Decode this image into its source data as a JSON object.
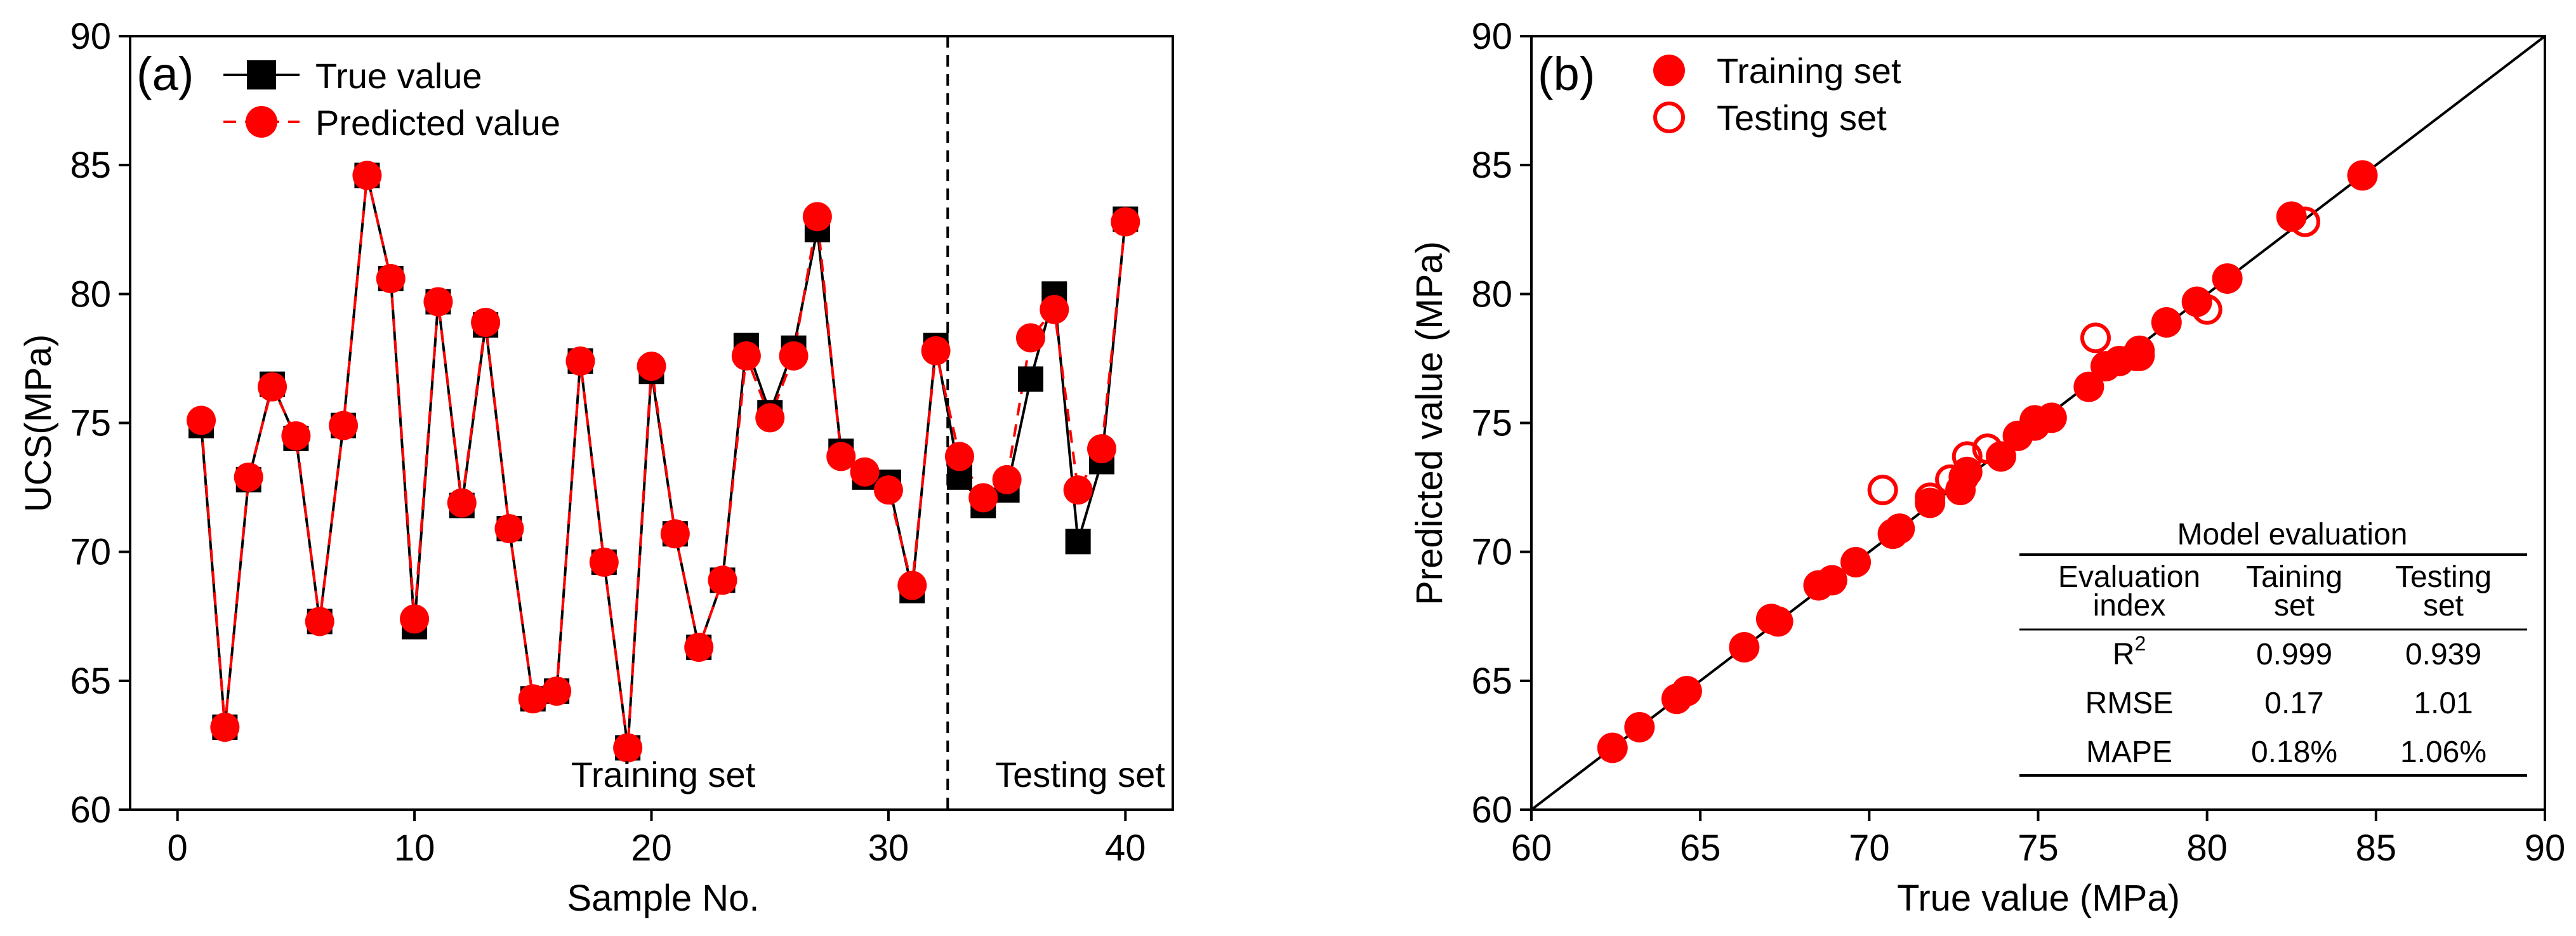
{
  "chart_data": [
    {
      "type": "line",
      "panel_label": "(a)",
      "xlabel": "Sample No.",
      "ylabel": "UCS(MPa)",
      "xlim": [
        -2,
        42
      ],
      "ylim": [
        60,
        90
      ],
      "xticks": [
        0,
        10,
        20,
        30,
        40
      ],
      "yticks": [
        60,
        65,
        70,
        75,
        80,
        85,
        90
      ],
      "split_at": 32.5,
      "region_labels": {
        "left": "Training set",
        "right": "Testing set"
      },
      "legend_position": "top-left",
      "x": [
        1,
        2,
        3,
        4,
        5,
        6,
        7,
        8,
        9,
        10,
        11,
        12,
        13,
        14,
        15,
        16,
        17,
        18,
        19,
        20,
        21,
        22,
        23,
        24,
        25,
        26,
        27,
        28,
        29,
        30,
        31,
        32,
        33,
        34,
        35,
        36,
        37,
        38,
        39,
        40
      ],
      "series": [
        {
          "name": "True value",
          "color": "#000000",
          "marker": "square",
          "values": [
            74.9,
            63.2,
            72.8,
            76.5,
            74.4,
            67.3,
            74.9,
            84.6,
            80.6,
            67.1,
            79.7,
            71.8,
            78.8,
            70.9,
            64.3,
            64.6,
            77.4,
            69.6,
            62.4,
            77.0,
            70.7,
            66.3,
            68.9,
            78.0,
            75.4,
            77.9,
            82.5,
            73.9,
            72.9,
            72.7,
            68.5,
            78.0,
            72.9,
            71.8,
            72.4,
            76.7,
            80.0,
            70.4,
            73.5,
            82.9
          ]
        },
        {
          "name": "Predicted value",
          "color": "#ff0000",
          "marker": "circle",
          "values": [
            75.1,
            63.2,
            72.9,
            76.4,
            74.5,
            67.3,
            74.9,
            84.6,
            80.6,
            67.4,
            79.7,
            71.9,
            78.9,
            70.9,
            64.3,
            64.6,
            77.4,
            69.6,
            62.4,
            77.2,
            70.7,
            66.3,
            68.9,
            77.6,
            75.2,
            77.6,
            83.0,
            73.7,
            73.1,
            72.4,
            68.7,
            77.8,
            73.7,
            72.1,
            72.8,
            78.3,
            79.4,
            72.4,
            74.0,
            82.8
          ]
        }
      ]
    },
    {
      "type": "scatter",
      "panel_label": "(b)",
      "xlabel": "True value (MPa)",
      "ylabel": "Predicted value (MPa)",
      "xlim": [
        60,
        90
      ],
      "ylim": [
        60,
        90
      ],
      "xticks": [
        60,
        65,
        70,
        75,
        80,
        85,
        90
      ],
      "yticks": [
        60,
        65,
        70,
        75,
        80,
        85,
        90
      ],
      "reference_line": "y = x",
      "legend_position": "top-left",
      "series": [
        {
          "name": "Training set",
          "color": "#ff0000",
          "marker": "filled-circle",
          "x": [
            74.9,
            63.2,
            72.8,
            76.5,
            74.4,
            67.3,
            74.9,
            84.6,
            80.6,
            67.1,
            79.7,
            71.8,
            78.8,
            70.9,
            64.3,
            64.6,
            77.4,
            69.6,
            62.4,
            77.0,
            70.7,
            66.3,
            68.9,
            78.0,
            75.4,
            77.9,
            82.5,
            73.9,
            72.9,
            72.7,
            68.5,
            78.0
          ],
          "y": [
            75.1,
            63.2,
            72.9,
            76.4,
            74.5,
            67.3,
            74.9,
            84.6,
            80.6,
            67.4,
            79.7,
            71.9,
            78.9,
            70.9,
            64.3,
            64.6,
            77.4,
            69.6,
            62.4,
            77.2,
            70.7,
            66.3,
            68.9,
            77.6,
            75.2,
            77.6,
            83.0,
            73.7,
            73.1,
            72.4,
            68.7,
            77.8
          ]
        },
        {
          "name": "Testing set",
          "color": "#ff0000",
          "marker": "open-circle",
          "x": [
            72.9,
            71.8,
            72.4,
            76.7,
            80.0,
            70.4,
            73.5,
            82.9
          ],
          "y": [
            73.7,
            72.1,
            72.8,
            78.3,
            79.4,
            72.4,
            74.0,
            82.8
          ]
        }
      ],
      "table": {
        "title": "Model evaluation",
        "header_col1": [
          "Evaluation",
          "index"
        ],
        "header_col2": [
          "Taining",
          "set"
        ],
        "header_col3": [
          "Testing",
          "set"
        ],
        "rows": [
          {
            "metric": "R",
            "sup": "2",
            "train": "0.999",
            "test": "0.939"
          },
          {
            "metric": "RMSE",
            "sup": "",
            "train": "0.17",
            "test": "1.01"
          },
          {
            "metric": "MAPE",
            "sup": "",
            "train": "0.18%",
            "test": "1.06%"
          }
        ]
      }
    }
  ]
}
